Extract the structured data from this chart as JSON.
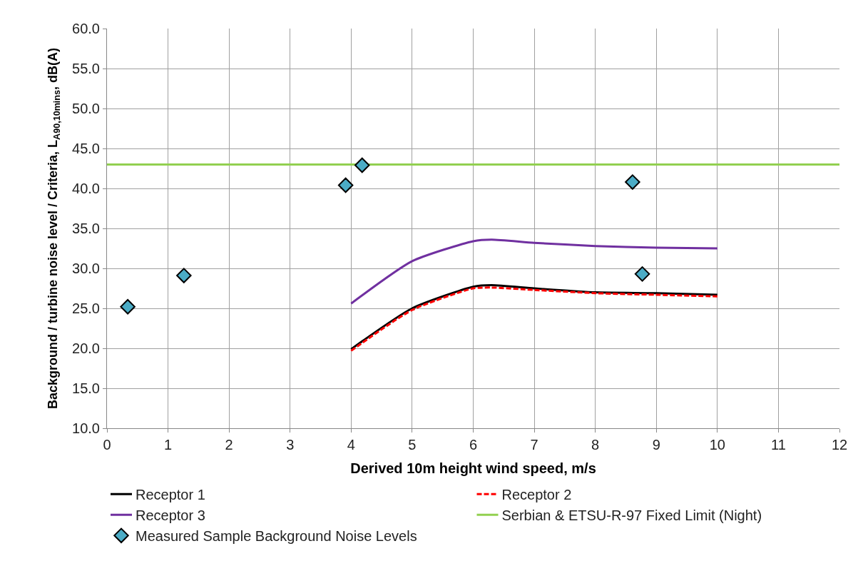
{
  "chart_data": {
    "type": "line",
    "xlabel": "Derived 10m height wind speed, m/s",
    "ylabel": "Background / turbine noise level / Criteria, L$_{A90,10mins}$, dB(A)",
    "xlim": [
      0,
      12
    ],
    "xticks": [
      0,
      1,
      2,
      3,
      4,
      5,
      6,
      7,
      8,
      9,
      10,
      11,
      12
    ],
    "ylim": [
      10,
      60
    ],
    "yticks": [
      {
        "value": 10,
        "label": "10.0"
      },
      {
        "value": 15,
        "label": "15.0"
      },
      {
        "value": 20,
        "label": "20.0"
      },
      {
        "value": 25,
        "label": "25.0"
      },
      {
        "value": 30,
        "label": "30.0"
      },
      {
        "value": 35,
        "label": "35.0"
      },
      {
        "value": 40,
        "label": "40.0"
      },
      {
        "value": 45,
        "label": "45.0"
      },
      {
        "value": 50,
        "label": "50.0"
      },
      {
        "value": 55,
        "label": "55.0"
      },
      {
        "value": 60,
        "label": "60.0"
      }
    ],
    "grid": true,
    "legend": "bottom",
    "series": [
      {
        "name": "Receptor 1",
        "color": "#000000",
        "line_style": "solid",
        "marker": "none",
        "x": [
          4,
          5,
          6,
          6.3,
          7,
          8,
          9,
          10
        ],
        "values": [
          19.9,
          25.0,
          27.7,
          27.9,
          27.5,
          27.0,
          26.9,
          26.7
        ]
      },
      {
        "name": "Receptor 2",
        "color": "#ff0000",
        "line_style": "dashed",
        "marker": "none",
        "x": [
          4,
          5,
          6,
          6.3,
          7,
          8,
          9,
          10
        ],
        "values": [
          19.7,
          24.8,
          27.5,
          27.6,
          27.3,
          26.9,
          26.7,
          26.5
        ]
      },
      {
        "name": "Receptor 3",
        "color": "#7030a0",
        "line_style": "solid",
        "marker": "none",
        "x": [
          4,
          5,
          6,
          6.3,
          7,
          8,
          9,
          10
        ],
        "values": [
          25.6,
          30.9,
          33.4,
          33.6,
          33.2,
          32.8,
          32.6,
          32.5
        ]
      },
      {
        "name": "Serbian & ETSU-R-97 Fixed Limit (Night)",
        "color": "#92d050",
        "line_style": "solid",
        "marker": "none",
        "x": [
          0,
          12
        ],
        "values": [
          43,
          43
        ]
      },
      {
        "name": "Measured Sample Background Noise Levels",
        "type": "scatter",
        "color": "#4bacc6",
        "marker": "diamond",
        "x": [
          0.34,
          1.26,
          3.91,
          4.18,
          8.61,
          8.77
        ],
        "values": [
          25.2,
          29.1,
          40.4,
          42.9,
          40.8,
          29.3
        ]
      }
    ]
  }
}
